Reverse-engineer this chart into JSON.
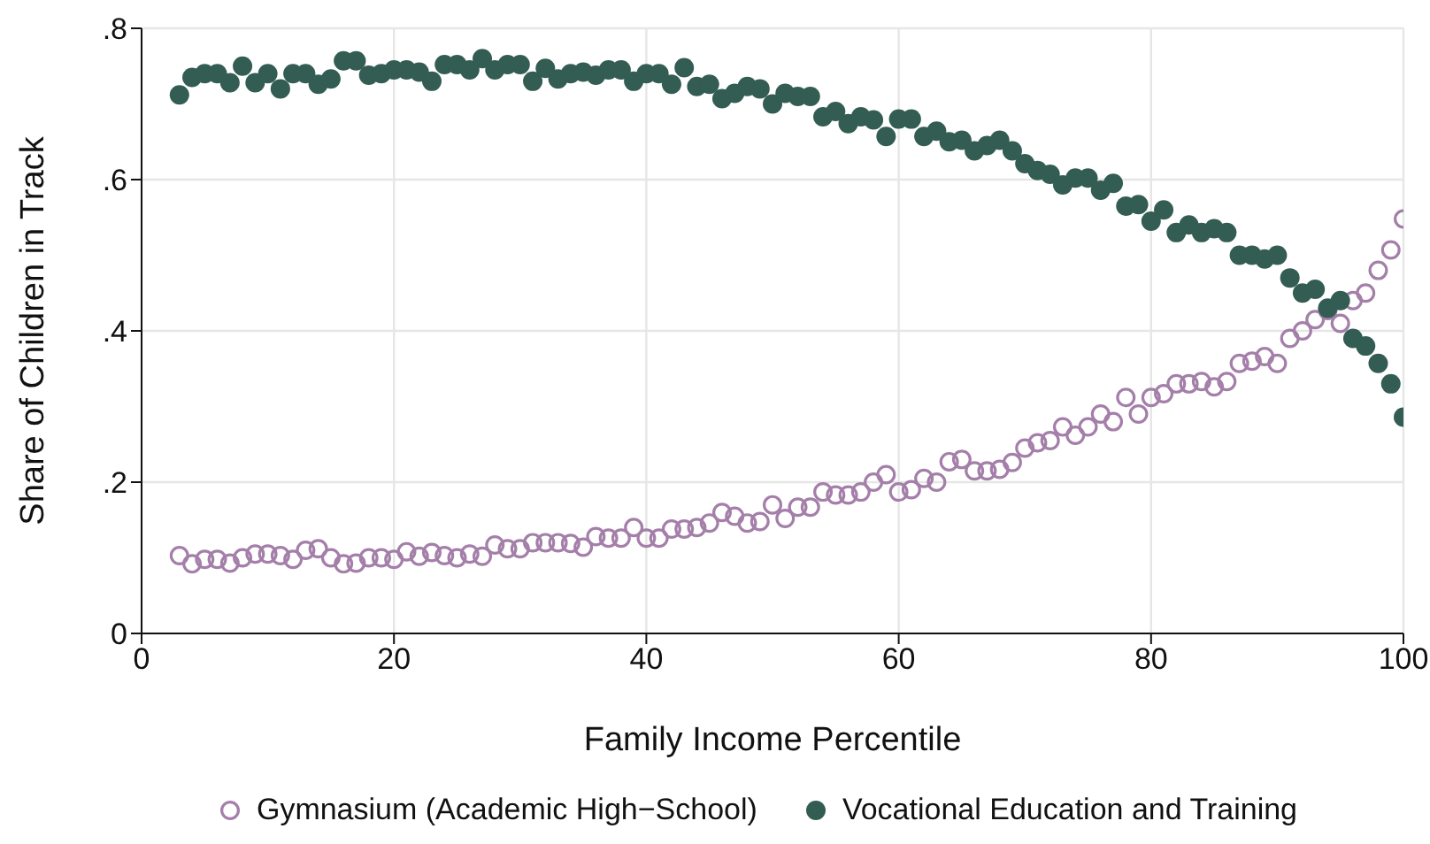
{
  "chart_data": {
    "type": "scatter",
    "xlabel": "Family Income Percentile",
    "ylabel": "Share of Children in Track",
    "x": [
      3,
      4,
      5,
      6,
      7,
      8,
      9,
      10,
      11,
      12,
      13,
      14,
      15,
      16,
      17,
      18,
      19,
      20,
      21,
      22,
      23,
      24,
      25,
      26,
      27,
      28,
      29,
      30,
      31,
      32,
      33,
      34,
      35,
      36,
      37,
      38,
      39,
      40,
      41,
      42,
      43,
      44,
      45,
      46,
      47,
      48,
      49,
      50,
      51,
      52,
      53,
      54,
      55,
      56,
      57,
      58,
      59,
      60,
      61,
      62,
      63,
      64,
      65,
      66,
      67,
      68,
      69,
      70,
      71,
      72,
      73,
      74,
      75,
      76,
      77,
      78,
      79,
      80,
      81,
      82,
      83,
      84,
      85,
      86,
      87,
      88,
      89,
      90,
      91,
      92,
      93,
      94,
      95,
      96,
      97,
      98,
      99,
      100
    ],
    "series": [
      {
        "name": "Gymnasium (Academic High−School)",
        "color": "#a47fa9",
        "values": [
          0.103,
          0.092,
          0.098,
          0.098,
          0.093,
          0.1,
          0.105,
          0.105,
          0.103,
          0.098,
          0.11,
          0.112,
          0.1,
          0.092,
          0.093,
          0.1,
          0.1,
          0.098,
          0.108,
          0.102,
          0.107,
          0.103,
          0.1,
          0.105,
          0.102,
          0.117,
          0.112,
          0.112,
          0.12,
          0.12,
          0.12,
          0.119,
          0.114,
          0.128,
          0.126,
          0.126,
          0.14,
          0.126,
          0.126,
          0.138,
          0.138,
          0.14,
          0.146,
          0.16,
          0.155,
          0.146,
          0.148,
          0.17,
          0.152,
          0.167,
          0.167,
          0.187,
          0.183,
          0.183,
          0.187,
          0.2,
          0.21,
          0.187,
          0.19,
          0.205,
          0.2,
          0.227,
          0.23,
          0.215,
          0.215,
          0.217,
          0.226,
          0.245,
          0.252,
          0.255,
          0.273,
          0.262,
          0.273,
          0.29,
          0.28,
          0.312,
          0.29,
          0.312,
          0.317,
          0.33,
          0.33,
          0.333,
          0.326,
          0.333,
          0.357,
          0.36,
          0.366,
          0.357,
          0.39,
          0.4,
          0.415,
          0.427,
          0.41,
          0.44,
          0.45,
          0.48,
          0.507,
          0.548
        ]
      },
      {
        "name": "Vocational Education and Training",
        "color": "#335c52",
        "values": [
          0.712,
          0.735,
          0.74,
          0.74,
          0.728,
          0.75,
          0.728,
          0.74,
          0.72,
          0.74,
          0.74,
          0.726,
          0.733,
          0.757,
          0.757,
          0.738,
          0.74,
          0.745,
          0.745,
          0.742,
          0.73,
          0.752,
          0.752,
          0.745,
          0.76,
          0.745,
          0.752,
          0.752,
          0.73,
          0.747,
          0.733,
          0.74,
          0.742,
          0.738,
          0.745,
          0.745,
          0.73,
          0.74,
          0.74,
          0.726,
          0.748,
          0.723,
          0.726,
          0.707,
          0.714,
          0.723,
          0.72,
          0.7,
          0.714,
          0.71,
          0.71,
          0.683,
          0.69,
          0.674,
          0.683,
          0.679,
          0.657,
          0.68,
          0.68,
          0.657,
          0.664,
          0.65,
          0.652,
          0.638,
          0.645,
          0.652,
          0.638,
          0.621,
          0.612,
          0.607,
          0.593,
          0.602,
          0.602,
          0.586,
          0.595,
          0.565,
          0.567,
          0.545,
          0.56,
          0.53,
          0.54,
          0.53,
          0.535,
          0.53,
          0.5,
          0.5,
          0.495,
          0.5,
          0.47,
          0.45,
          0.455,
          0.43,
          0.44,
          0.39,
          0.38,
          0.357,
          0.33,
          0.286
        ]
      }
    ],
    "xlim": [
      0,
      100
    ],
    "xticks": [
      0,
      20,
      40,
      60,
      80,
      100
    ],
    "ylim": [
      0,
      0.8
    ],
    "yticks": [
      0,
      {
        "value": 0.2,
        "label": ".2"
      },
      {
        "value": 0.4,
        "label": ".4"
      },
      {
        "value": 0.6,
        "label": ".6"
      },
      {
        "value": 0.8,
        "label": ".8"
      }
    ],
    "grid": true,
    "legend": "bottom",
    "marker": "circle"
  }
}
